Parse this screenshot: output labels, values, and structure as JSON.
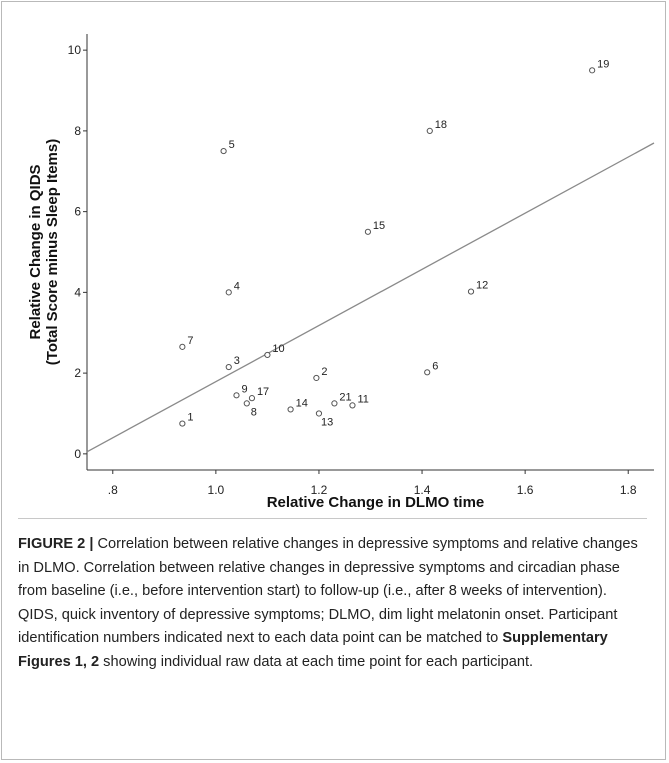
{
  "caption": {
    "figure_label": "FIGURE 2 |",
    "text_1": " Correlation between relative changes in depressive symptoms and relative changes in DLMO. Correlation between relative changes in depressive symptoms and circadian phase from baseline (i.e., before intervention start) to follow-up (i.e., after 8 weeks of intervention). QIDS, quick inventory of depressive symptoms; DLMO, dim light melatonin onset. Participant identification numbers indicated next to each data point can be matched to ",
    "link": "Supplementary Figures 1, 2",
    "text_2": " showing individual raw data at each time point for each participant."
  },
  "chart_data": {
    "type": "scatter",
    "title": "",
    "xlabel": "Relative Change in DLMO time",
    "ylabel_line1": "Relative Change in QIDS",
    "ylabel_line2": "(Total Score minus Sleep Items)",
    "xlim": [
      0.75,
      1.85
    ],
    "ylim": [
      -0.4,
      10.4
    ],
    "xticks": [
      0.8,
      1.0,
      1.2,
      1.4,
      1.6,
      1.8
    ],
    "xtick_labels": [
      ".8",
      "1.0",
      "1.2",
      "1.4",
      "1.6",
      "1.8"
    ],
    "yticks": [
      0,
      2,
      4,
      6,
      8,
      10
    ],
    "ytick_labels": [
      "0",
      "2",
      "4",
      "6",
      "8",
      "10"
    ],
    "grid": false,
    "legend": "none",
    "points": [
      {
        "id": "1",
        "x": 0.935,
        "y": 0.75
      },
      {
        "id": "2",
        "x": 1.195,
        "y": 1.88
      },
      {
        "id": "3",
        "x": 1.025,
        "y": 2.15
      },
      {
        "id": "4",
        "x": 1.025,
        "y": 4.0
      },
      {
        "id": "5",
        "x": 1.015,
        "y": 7.5
      },
      {
        "id": "6",
        "x": 1.41,
        "y": 2.02
      },
      {
        "id": "7",
        "x": 0.935,
        "y": 2.65
      },
      {
        "id": "8",
        "x": 1.06,
        "y": 1.25
      },
      {
        "id": "9",
        "x": 1.04,
        "y": 1.45
      },
      {
        "id": "10",
        "x": 1.1,
        "y": 2.45
      },
      {
        "id": "11",
        "x": 1.265,
        "y": 1.2
      },
      {
        "id": "12",
        "x": 1.495,
        "y": 4.02
      },
      {
        "id": "13",
        "x": 1.2,
        "y": 1.0
      },
      {
        "id": "14",
        "x": 1.145,
        "y": 1.1
      },
      {
        "id": "15",
        "x": 1.295,
        "y": 5.5
      },
      {
        "id": "17",
        "x": 1.07,
        "y": 1.38
      },
      {
        "id": "18",
        "x": 1.415,
        "y": 8.0
      },
      {
        "id": "19",
        "x": 1.73,
        "y": 9.5
      },
      {
        "id": "21",
        "x": 1.23,
        "y": 1.25
      }
    ],
    "fit_line": {
      "x": [
        0.75,
        1.85
      ],
      "y": [
        0.05,
        7.7
      ]
    }
  }
}
